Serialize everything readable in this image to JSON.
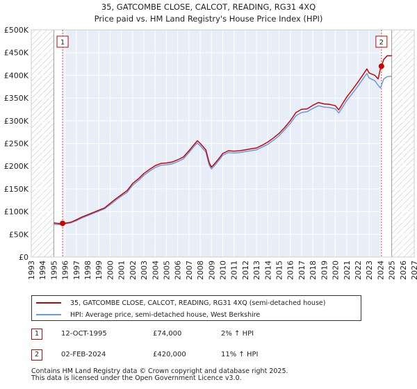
{
  "chart_data": {
    "type": "line",
    "title": "35, GATCOMBE CLOSE, CALCOT, READING, RG31 4XQ",
    "subtitle": "Price paid vs. HM Land Registry's House Price Index (HPI)",
    "xlim": [
      1993,
      2027
    ],
    "ylim": [
      0,
      500000
    ],
    "x_ticks": [
      "1993",
      "1994",
      "1995",
      "1996",
      "1997",
      "1998",
      "1999",
      "2000",
      "2001",
      "2002",
      "2003",
      "2004",
      "2005",
      "2006",
      "2007",
      "2008",
      "2009",
      "2010",
      "2011",
      "2012",
      "2013",
      "2014",
      "2015",
      "2016",
      "2017",
      "2018",
      "2019",
      "2020",
      "2021",
      "2022",
      "2023",
      "2024",
      "2025",
      "2026",
      "2027"
    ],
    "y_ticks": [
      {
        "value": 0,
        "label": "£0"
      },
      {
        "value": 50000,
        "label": "£50K"
      },
      {
        "value": 100000,
        "label": "£100K"
      },
      {
        "value": 150000,
        "label": "£150K"
      },
      {
        "value": 200000,
        "label": "£200K"
      },
      {
        "value": 250000,
        "label": "£250K"
      },
      {
        "value": 300000,
        "label": "£300K"
      },
      {
        "value": 350000,
        "label": "£350K"
      },
      {
        "value": 400000,
        "label": "£400K"
      },
      {
        "value": 450000,
        "label": "£450K"
      },
      {
        "value": 500000,
        "label": "£500K"
      }
    ],
    "grid": true,
    "hatched_ranges": [
      [
        1993,
        1995.0
      ],
      [
        2025.0,
        2027
      ]
    ],
    "highlight_range": [
      1995.78,
      2024.09
    ],
    "series": [
      {
        "name": "35, GATCOMBE CLOSE, CALCOT, READING, RG31 4XQ (semi-detached house)",
        "color": "#cc0000",
        "points": [
          [
            1995.0,
            75000
          ],
          [
            1995.5,
            73500
          ],
          [
            1995.78,
            74000
          ],
          [
            1996.0,
            74500
          ],
          [
            1996.5,
            76500
          ],
          [
            1997.0,
            82000
          ],
          [
            1997.5,
            88000
          ],
          [
            1998.0,
            93000
          ],
          [
            1998.5,
            98000
          ],
          [
            1999.0,
            103000
          ],
          [
            1999.5,
            108000
          ],
          [
            2000.0,
            118000
          ],
          [
            2000.5,
            128000
          ],
          [
            2001.0,
            137000
          ],
          [
            2001.5,
            146000
          ],
          [
            2002.0,
            162000
          ],
          [
            2002.5,
            172000
          ],
          [
            2003.0,
            184000
          ],
          [
            2003.5,
            193000
          ],
          [
            2004.0,
            201000
          ],
          [
            2004.5,
            206000
          ],
          [
            2005.0,
            207000
          ],
          [
            2005.5,
            209000
          ],
          [
            2006.0,
            214000
          ],
          [
            2006.5,
            220000
          ],
          [
            2007.0,
            234000
          ],
          [
            2007.5,
            249000
          ],
          [
            2007.75,
            256000
          ],
          [
            2008.0,
            250000
          ],
          [
            2008.5,
            236000
          ],
          [
            2008.8,
            207000
          ],
          [
            2009.0,
            198000
          ],
          [
            2009.3,
            206000
          ],
          [
            2009.7,
            218000
          ],
          [
            2010.0,
            228000
          ],
          [
            2010.5,
            234000
          ],
          [
            2011.0,
            233000
          ],
          [
            2011.5,
            234000
          ],
          [
            2012.0,
            236000
          ],
          [
            2012.5,
            238000
          ],
          [
            2013.0,
            240000
          ],
          [
            2013.5,
            246000
          ],
          [
            2014.0,
            253000
          ],
          [
            2014.5,
            262000
          ],
          [
            2015.0,
            272000
          ],
          [
            2015.5,
            285000
          ],
          [
            2016.0,
            300000
          ],
          [
            2016.5,
            318000
          ],
          [
            2017.0,
            325000
          ],
          [
            2017.5,
            326000
          ],
          [
            2018.0,
            334000
          ],
          [
            2018.5,
            340000
          ],
          [
            2019.0,
            337000
          ],
          [
            2019.5,
            336000
          ],
          [
            2020.0,
            333000
          ],
          [
            2020.3,
            324000
          ],
          [
            2020.7,
            340000
          ],
          [
            2021.0,
            352000
          ],
          [
            2021.5,
            368000
          ],
          [
            2022.0,
            385000
          ],
          [
            2022.5,
            403000
          ],
          [
            2022.8,
            414000
          ],
          [
            2023.0,
            405000
          ],
          [
            2023.5,
            400000
          ],
          [
            2023.8,
            392000
          ],
          [
            2024.0,
            415000
          ],
          [
            2024.09,
            420000
          ],
          [
            2024.3,
            435000
          ],
          [
            2024.6,
            443000
          ],
          [
            2025.0,
            443000
          ]
        ]
      },
      {
        "name": "HPI: Average price, semi-detached house, West Berkshire",
        "color": "#6699dd",
        "points": [
          [
            1995.0,
            72000
          ],
          [
            1995.5,
            71500
          ],
          [
            1995.78,
            72500
          ],
          [
            1996.0,
            73000
          ],
          [
            1996.5,
            75000
          ],
          [
            1997.0,
            80000
          ],
          [
            1997.5,
            86000
          ],
          [
            1998.0,
            91000
          ],
          [
            1998.5,
            96000
          ],
          [
            1999.0,
            101000
          ],
          [
            1999.5,
            106000
          ],
          [
            2000.0,
            115000
          ],
          [
            2000.5,
            125000
          ],
          [
            2001.0,
            134000
          ],
          [
            2001.5,
            142000
          ],
          [
            2002.0,
            158000
          ],
          [
            2002.5,
            168000
          ],
          [
            2003.0,
            180000
          ],
          [
            2003.5,
            189000
          ],
          [
            2004.0,
            197000
          ],
          [
            2004.5,
            202000
          ],
          [
            2005.0,
            203000
          ],
          [
            2005.5,
            205000
          ],
          [
            2006.0,
            210000
          ],
          [
            2006.5,
            216000
          ],
          [
            2007.0,
            230000
          ],
          [
            2007.5,
            245000
          ],
          [
            2007.75,
            251000
          ],
          [
            2008.0,
            245000
          ],
          [
            2008.5,
            231000
          ],
          [
            2008.8,
            202000
          ],
          [
            2009.0,
            194000
          ],
          [
            2009.3,
            202000
          ],
          [
            2009.7,
            214000
          ],
          [
            2010.0,
            224000
          ],
          [
            2010.5,
            230000
          ],
          [
            2011.0,
            229000
          ],
          [
            2011.5,
            230000
          ],
          [
            2012.0,
            232000
          ],
          [
            2012.5,
            234000
          ],
          [
            2013.0,
            236000
          ],
          [
            2013.5,
            242000
          ],
          [
            2014.0,
            248000
          ],
          [
            2014.5,
            257000
          ],
          [
            2015.0,
            267000
          ],
          [
            2015.5,
            280000
          ],
          [
            2016.0,
            294000
          ],
          [
            2016.5,
            311000
          ],
          [
            2017.0,
            318000
          ],
          [
            2017.5,
            320000
          ],
          [
            2018.0,
            327000
          ],
          [
            2018.5,
            333000
          ],
          [
            2019.0,
            330000
          ],
          [
            2019.5,
            329000
          ],
          [
            2020.0,
            326000
          ],
          [
            2020.3,
            317000
          ],
          [
            2020.7,
            332000
          ],
          [
            2021.0,
            344000
          ],
          [
            2021.5,
            360000
          ],
          [
            2022.0,
            376000
          ],
          [
            2022.5,
            394000
          ],
          [
            2022.8,
            404000
          ],
          [
            2023.0,
            394000
          ],
          [
            2023.5,
            388000
          ],
          [
            2023.8,
            378000
          ],
          [
            2024.0,
            372000
          ],
          [
            2024.09,
            378000
          ],
          [
            2024.3,
            392000
          ],
          [
            2024.6,
            397000
          ],
          [
            2025.0,
            398000
          ]
        ]
      }
    ],
    "markers": [
      {
        "label": "1",
        "x": 1995.78,
        "y": 74000
      },
      {
        "label": "2",
        "x": 2024.09,
        "y": 420000
      }
    ]
  },
  "legend": {
    "property_label": "35, GATCOMBE CLOSE, CALCOT, READING, RG31 4XQ (semi-detached house)",
    "hpi_label": "HPI: Average price, semi-detached house, West Berkshire"
  },
  "transactions": [
    {
      "num": "1",
      "date": "12-OCT-1995",
      "price": "£74,000",
      "hpi": "2% ↑ HPI"
    },
    {
      "num": "2",
      "date": "02-FEB-2024",
      "price": "£420,000",
      "hpi": "11% ↑ HPI"
    }
  ],
  "footer": {
    "line1": "Contains HM Land Registry data © Crown copyright and database right 2025.",
    "line2": "This data is licensed under the Open Government Licence v3.0."
  }
}
